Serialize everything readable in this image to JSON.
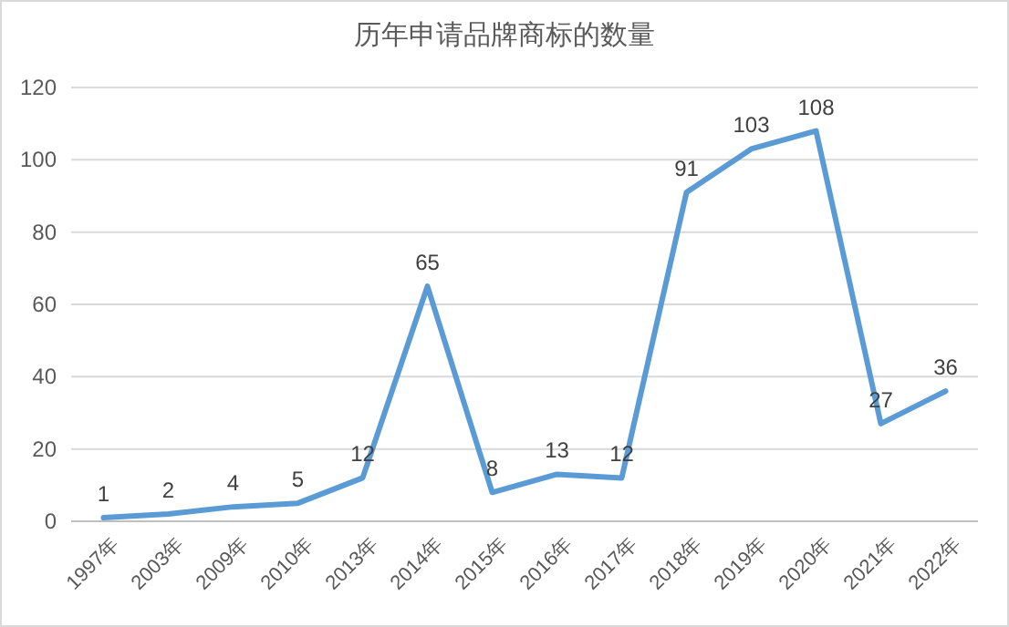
{
  "chart_data": {
    "type": "line",
    "title": "历年申请品牌商标的数量",
    "categories": [
      "1997年",
      "2003年",
      "2009年",
      "2010年",
      "2013年",
      "2014年",
      "2015年",
      "2016年",
      "2017年",
      "2018年",
      "2019年",
      "2020年",
      "2021年",
      "2022年"
    ],
    "values": [
      1,
      2,
      4,
      5,
      12,
      65,
      8,
      13,
      12,
      91,
      103,
      108,
      27,
      36
    ],
    "color": "#5b9bd5",
    "ylim": [
      0,
      120
    ],
    "yticks": [
      0,
      20,
      40,
      60,
      80,
      100,
      120
    ],
    "grid": "y",
    "data_labels": true
  }
}
